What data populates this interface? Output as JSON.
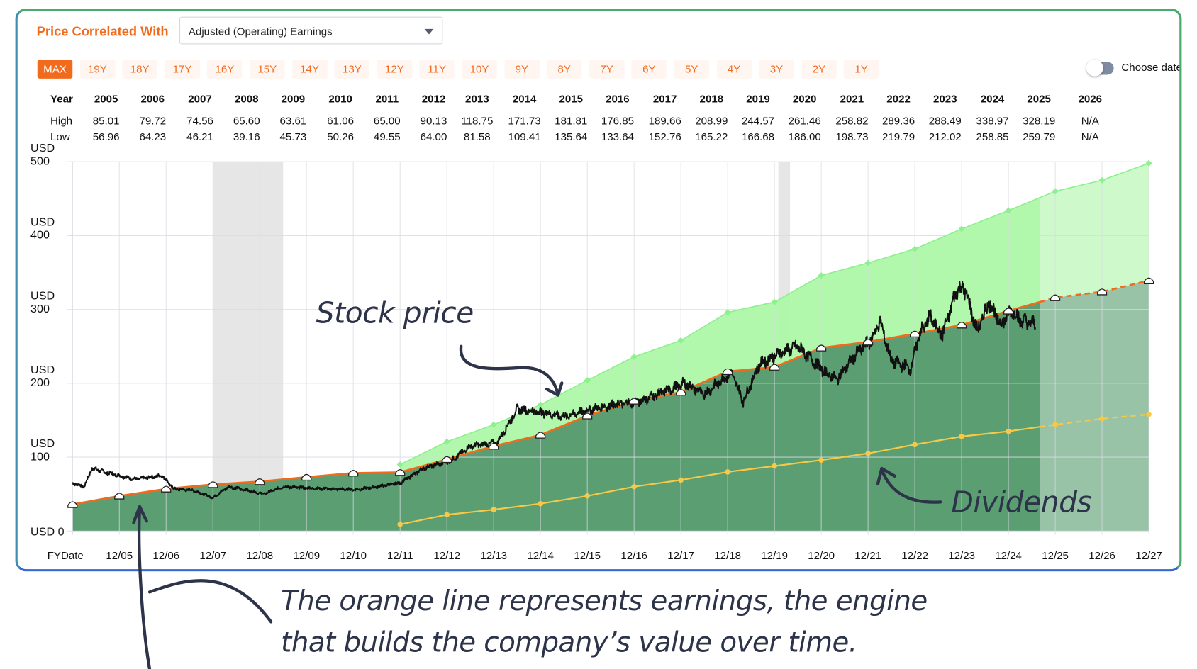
{
  "header": {
    "title": "Price Correlated With",
    "select_value": "Adjusted (Operating) Earnings",
    "periods": [
      "MAX",
      "19Y",
      "18Y",
      "17Y",
      "16Y",
      "15Y",
      "14Y",
      "13Y",
      "12Y",
      "11Y",
      "10Y",
      "9Y",
      "8Y",
      "7Y",
      "6Y",
      "5Y",
      "4Y",
      "3Y",
      "2Y",
      "1Y"
    ],
    "active_period": "MAX",
    "choose_dates_label": "Choose dates",
    "choose_dates_on": false
  },
  "table": {
    "row_labels": {
      "year": "Year",
      "high": "High",
      "low": "Low"
    },
    "years": [
      "2005",
      "2006",
      "2007",
      "2008",
      "2009",
      "2010",
      "2011",
      "2012",
      "2013",
      "2014",
      "2015",
      "2016",
      "2017",
      "2018",
      "2019",
      "2020",
      "2021",
      "2022",
      "2023",
      "2024",
      "2025",
      "2026"
    ],
    "high": [
      "85.01",
      "79.72",
      "74.56",
      "65.60",
      "63.61",
      "61.06",
      "65.00",
      "90.13",
      "118.75",
      "171.73",
      "181.81",
      "176.85",
      "189.66",
      "208.99",
      "244.57",
      "261.46",
      "258.82",
      "289.36",
      "288.49",
      "338.97",
      "328.19",
      "N/A"
    ],
    "low": [
      "56.96",
      "64.23",
      "46.21",
      "39.16",
      "45.73",
      "50.26",
      "49.55",
      "64.00",
      "81.58",
      "109.41",
      "135.64",
      "133.64",
      "152.76",
      "165.22",
      "166.68",
      "186.00",
      "198.73",
      "219.79",
      "212.02",
      "258.85",
      "259.79",
      "N/A"
    ]
  },
  "chart_data": {
    "type": "line",
    "xlabel": "FYDate",
    "x_ticks": [
      "12/05",
      "12/06",
      "12/07",
      "12/08",
      "12/09",
      "12/10",
      "12/11",
      "12/12",
      "12/13",
      "12/14",
      "12/15",
      "12/16",
      "12/17",
      "12/18",
      "12/19",
      "12/20",
      "12/21",
      "12/22",
      "12/23",
      "12/24",
      "12/25",
      "12/26",
      "12/27"
    ],
    "y_ticks": [
      {
        "value": 0,
        "label": "USD 0"
      },
      {
        "value": 100,
        "label": "USD 100"
      },
      {
        "value": 200,
        "label": "USD 200"
      },
      {
        "value": 300,
        "label": "USD 300"
      },
      {
        "value": 400,
        "label": "USD 400"
      },
      {
        "value": 500,
        "label": "USD 500"
      }
    ],
    "ylim": [
      0,
      500
    ],
    "grid": true,
    "colors": {
      "earnings": "#f26b1d",
      "earnings_fill": "#5a9e72",
      "upper_band": "#8ef08e",
      "dividends": "#f7c948",
      "price": "#111111",
      "recession": "#e6e6e6"
    },
    "projection_start": "2025-08",
    "recessions": [
      [
        "2007-12",
        "2009-06"
      ],
      [
        "2020-01",
        "2020-04"
      ]
    ],
    "earnings": {
      "dates": [
        "2004-12",
        "2005-12",
        "2006-12",
        "2007-12",
        "2008-12",
        "2009-12",
        "2010-12",
        "2011-12",
        "2012-12",
        "2013-12",
        "2014-12",
        "2015-12",
        "2016-12",
        "2017-12",
        "2018-12",
        "2019-12",
        "2020-12",
        "2021-12",
        "2022-12",
        "2023-12",
        "2024-12",
        "2025-12",
        "2026-12",
        "2027-12"
      ],
      "values": [
        36,
        47.5,
        57,
        63,
        67,
        73,
        78.5,
        79.5,
        97,
        115,
        130,
        156,
        176,
        188,
        216,
        222,
        248,
        256,
        267,
        279,
        298,
        316,
        324,
        339
      ]
    },
    "upper_band": {
      "dates": [
        "2011-12",
        "2012-12",
        "2013-12",
        "2014-12",
        "2015-12",
        "2016-12",
        "2017-12",
        "2018-12",
        "2019-12",
        "2020-12",
        "2021-12",
        "2022-12",
        "2023-12",
        "2024-12",
        "2025-12",
        "2026-12",
        "2027-12"
      ],
      "values": [
        90,
        121,
        144,
        171,
        204,
        236,
        258,
        296,
        310,
        346,
        363,
        382,
        409,
        434,
        460,
        475,
        498
      ]
    },
    "dividends": {
      "dates": [
        "2011-12",
        "2012-12",
        "2013-12",
        "2014-12",
        "2015-12",
        "2016-12",
        "2017-12",
        "2018-12",
        "2019-12",
        "2020-12",
        "2021-12",
        "2022-12",
        "2023-12",
        "2024-12",
        "2025-12",
        "2026-12",
        "2027-12"
      ],
      "values": [
        9,
        22,
        29,
        37,
        47.5,
        60,
        69,
        80,
        88,
        96,
        105,
        117,
        128,
        135,
        144,
        152,
        158
      ]
    },
    "price": {
      "dates": [
        "2004-12",
        "2005-03",
        "2005-05",
        "2005-08",
        "2005-12",
        "2006-04",
        "2006-11",
        "2007-02",
        "2007-07",
        "2007-12",
        "2008-04",
        "2008-09",
        "2009-01",
        "2009-06",
        "2010-01",
        "2010-06",
        "2011-01",
        "2011-06",
        "2011-12",
        "2012-06",
        "2013-01",
        "2013-06",
        "2014-01",
        "2014-06",
        "2015-01",
        "2015-06",
        "2016-01",
        "2016-06",
        "2017-01",
        "2017-06",
        "2018-01",
        "2018-06",
        "2019-01",
        "2019-04",
        "2019-08",
        "2020-01",
        "2020-06",
        "2021-01",
        "2021-04",
        "2021-09",
        "2022-01",
        "2022-03",
        "2022-06",
        "2022-11",
        "2023-01",
        "2023-04",
        "2023-07",
        "2023-11",
        "2024-01",
        "2024-04",
        "2024-07",
        "2024-10",
        "2025-01",
        "2025-03",
        "2025-07"
      ],
      "values": [
        65,
        60,
        85,
        80,
        75,
        70,
        75,
        57,
        55,
        45,
        60,
        55,
        50,
        60,
        58,
        57,
        56,
        60,
        65,
        85,
        95,
        115,
        120,
        165,
        160,
        155,
        165,
        170,
        175,
        185,
        200,
        185,
        215,
        175,
        225,
        240,
        250,
        215,
        205,
        240,
        260,
        285,
        230,
        220,
        265,
        290,
        265,
        330,
        325,
        270,
        310,
        280,
        300,
        285,
        280
      ]
    },
    "annotations": [
      "Stock price",
      "Dividends",
      "The orange line represents earnings, the engine that builds the company’s value over time."
    ]
  },
  "notes": {
    "stock_price": "Stock price",
    "dividends": "Dividends",
    "line1": "The orange line represents earnings, the engine",
    "line2": "that builds the company’s value over time."
  }
}
